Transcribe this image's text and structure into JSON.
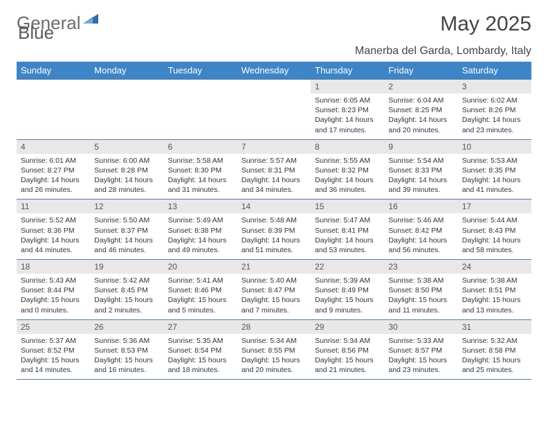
{
  "brand": {
    "part1": "General",
    "part2": "Blue"
  },
  "title": "May 2025",
  "subtitle": "Manerba del Garda, Lombardy, Italy",
  "colors": {
    "header_bg": "#3d85c6",
    "header_text": "#ffffff",
    "daynum_bg": "#e8e8e8",
    "rule": "#5b7da0",
    "brand_blue": "#2f6fa8",
    "brand_gray": "#6b6b6b",
    "page_bg": "#ffffff",
    "body_text": "#333333"
  },
  "typography": {
    "title_fontsize": 30,
    "subtitle_fontsize": 16,
    "dow_fontsize": 13,
    "daynum_fontsize": 12,
    "detail_fontsize": 10.5,
    "font_family": "Arial"
  },
  "dow": [
    "Sunday",
    "Monday",
    "Tuesday",
    "Wednesday",
    "Thursday",
    "Friday",
    "Saturday"
  ],
  "grid": {
    "rows": 5,
    "cols": 7,
    "first_weekday_index": 4,
    "days_in_month": 31
  },
  "days": {
    "1": {
      "sunrise": "Sunrise: 6:05 AM",
      "sunset": "Sunset: 8:23 PM",
      "daylight1": "Daylight: 14 hours",
      "daylight2": "and 17 minutes."
    },
    "2": {
      "sunrise": "Sunrise: 6:04 AM",
      "sunset": "Sunset: 8:25 PM",
      "daylight1": "Daylight: 14 hours",
      "daylight2": "and 20 minutes."
    },
    "3": {
      "sunrise": "Sunrise: 6:02 AM",
      "sunset": "Sunset: 8:26 PM",
      "daylight1": "Daylight: 14 hours",
      "daylight2": "and 23 minutes."
    },
    "4": {
      "sunrise": "Sunrise: 6:01 AM",
      "sunset": "Sunset: 8:27 PM",
      "daylight1": "Daylight: 14 hours",
      "daylight2": "and 26 minutes."
    },
    "5": {
      "sunrise": "Sunrise: 6:00 AM",
      "sunset": "Sunset: 8:28 PM",
      "daylight1": "Daylight: 14 hours",
      "daylight2": "and 28 minutes."
    },
    "6": {
      "sunrise": "Sunrise: 5:58 AM",
      "sunset": "Sunset: 8:30 PM",
      "daylight1": "Daylight: 14 hours",
      "daylight2": "and 31 minutes."
    },
    "7": {
      "sunrise": "Sunrise: 5:57 AM",
      "sunset": "Sunset: 8:31 PM",
      "daylight1": "Daylight: 14 hours",
      "daylight2": "and 34 minutes."
    },
    "8": {
      "sunrise": "Sunrise: 5:55 AM",
      "sunset": "Sunset: 8:32 PM",
      "daylight1": "Daylight: 14 hours",
      "daylight2": "and 36 minutes."
    },
    "9": {
      "sunrise": "Sunrise: 5:54 AM",
      "sunset": "Sunset: 8:33 PM",
      "daylight1": "Daylight: 14 hours",
      "daylight2": "and 39 minutes."
    },
    "10": {
      "sunrise": "Sunrise: 5:53 AM",
      "sunset": "Sunset: 8:35 PM",
      "daylight1": "Daylight: 14 hours",
      "daylight2": "and 41 minutes."
    },
    "11": {
      "sunrise": "Sunrise: 5:52 AM",
      "sunset": "Sunset: 8:36 PM",
      "daylight1": "Daylight: 14 hours",
      "daylight2": "and 44 minutes."
    },
    "12": {
      "sunrise": "Sunrise: 5:50 AM",
      "sunset": "Sunset: 8:37 PM",
      "daylight1": "Daylight: 14 hours",
      "daylight2": "and 46 minutes."
    },
    "13": {
      "sunrise": "Sunrise: 5:49 AM",
      "sunset": "Sunset: 8:38 PM",
      "daylight1": "Daylight: 14 hours",
      "daylight2": "and 49 minutes."
    },
    "14": {
      "sunrise": "Sunrise: 5:48 AM",
      "sunset": "Sunset: 8:39 PM",
      "daylight1": "Daylight: 14 hours",
      "daylight2": "and 51 minutes."
    },
    "15": {
      "sunrise": "Sunrise: 5:47 AM",
      "sunset": "Sunset: 8:41 PM",
      "daylight1": "Daylight: 14 hours",
      "daylight2": "and 53 minutes."
    },
    "16": {
      "sunrise": "Sunrise: 5:46 AM",
      "sunset": "Sunset: 8:42 PM",
      "daylight1": "Daylight: 14 hours",
      "daylight2": "and 56 minutes."
    },
    "17": {
      "sunrise": "Sunrise: 5:44 AM",
      "sunset": "Sunset: 8:43 PM",
      "daylight1": "Daylight: 14 hours",
      "daylight2": "and 58 minutes."
    },
    "18": {
      "sunrise": "Sunrise: 5:43 AM",
      "sunset": "Sunset: 8:44 PM",
      "daylight1": "Daylight: 15 hours",
      "daylight2": "and 0 minutes."
    },
    "19": {
      "sunrise": "Sunrise: 5:42 AM",
      "sunset": "Sunset: 8:45 PM",
      "daylight1": "Daylight: 15 hours",
      "daylight2": "and 2 minutes."
    },
    "20": {
      "sunrise": "Sunrise: 5:41 AM",
      "sunset": "Sunset: 8:46 PM",
      "daylight1": "Daylight: 15 hours",
      "daylight2": "and 5 minutes."
    },
    "21": {
      "sunrise": "Sunrise: 5:40 AM",
      "sunset": "Sunset: 8:47 PM",
      "daylight1": "Daylight: 15 hours",
      "daylight2": "and 7 minutes."
    },
    "22": {
      "sunrise": "Sunrise: 5:39 AM",
      "sunset": "Sunset: 8:49 PM",
      "daylight1": "Daylight: 15 hours",
      "daylight2": "and 9 minutes."
    },
    "23": {
      "sunrise": "Sunrise: 5:38 AM",
      "sunset": "Sunset: 8:50 PM",
      "daylight1": "Daylight: 15 hours",
      "daylight2": "and 11 minutes."
    },
    "24": {
      "sunrise": "Sunrise: 5:38 AM",
      "sunset": "Sunset: 8:51 PM",
      "daylight1": "Daylight: 15 hours",
      "daylight2": "and 13 minutes."
    },
    "25": {
      "sunrise": "Sunrise: 5:37 AM",
      "sunset": "Sunset: 8:52 PM",
      "daylight1": "Daylight: 15 hours",
      "daylight2": "and 14 minutes."
    },
    "26": {
      "sunrise": "Sunrise: 5:36 AM",
      "sunset": "Sunset: 8:53 PM",
      "daylight1": "Daylight: 15 hours",
      "daylight2": "and 16 minutes."
    },
    "27": {
      "sunrise": "Sunrise: 5:35 AM",
      "sunset": "Sunset: 8:54 PM",
      "daylight1": "Daylight: 15 hours",
      "daylight2": "and 18 minutes."
    },
    "28": {
      "sunrise": "Sunrise: 5:34 AM",
      "sunset": "Sunset: 8:55 PM",
      "daylight1": "Daylight: 15 hours",
      "daylight2": "and 20 minutes."
    },
    "29": {
      "sunrise": "Sunrise: 5:34 AM",
      "sunset": "Sunset: 8:56 PM",
      "daylight1": "Daylight: 15 hours",
      "daylight2": "and 21 minutes."
    },
    "30": {
      "sunrise": "Sunrise: 5:33 AM",
      "sunset": "Sunset: 8:57 PM",
      "daylight1": "Daylight: 15 hours",
      "daylight2": "and 23 minutes."
    },
    "31": {
      "sunrise": "Sunrise: 5:32 AM",
      "sunset": "Sunset: 8:58 PM",
      "daylight1": "Daylight: 15 hours",
      "daylight2": "and 25 minutes."
    }
  }
}
